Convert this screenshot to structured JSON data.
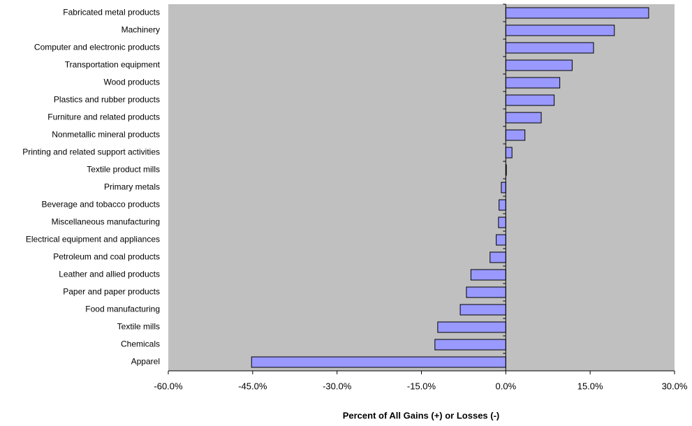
{
  "chart_data": {
    "type": "bar",
    "orientation": "horizontal",
    "x_label": "Percent of All Gains (+)  or Losses (-)",
    "categories": [
      "Fabricated metal products",
      "Machinery",
      "Computer and electronic products",
      "Transportation equipment",
      "Wood products",
      "Plastics and rubber products",
      "Furniture and related products",
      "Nonmetallic mineral products",
      "Printing and related support activities",
      "Textile product mills",
      "Primary metals",
      "Beverage and tobacco products",
      "Miscellaneous manufacturing",
      "Electrical equipment and appliances",
      "Petroleum and coal products",
      "Leather and allied products",
      "Paper and paper products",
      "Food manufacturing",
      "Textile mills",
      "Chemicals",
      "Apparel"
    ],
    "values": [
      25.4,
      19.3,
      15.6,
      11.8,
      9.6,
      8.6,
      6.3,
      3.4,
      1.1,
      0.1,
      -0.8,
      -1.2,
      -1.3,
      -1.7,
      -2.8,
      -6.2,
      -7.0,
      -8.1,
      -12.1,
      -12.6,
      -45.2
    ],
    "color": "#9999ff",
    "plot_background": "#c0c0c0",
    "xlim": [
      -60,
      30
    ],
    "xticks": [
      {
        "value": -60,
        "label": "-60.0%"
      },
      {
        "value": -45,
        "label": "-45.0%"
      },
      {
        "value": -30,
        "label": "-30.0%"
      },
      {
        "value": -15,
        "label": "-15.0%"
      },
      {
        "value": 0,
        "label": "0.0%"
      },
      {
        "value": 15,
        "label": "15.0%"
      },
      {
        "value": 30,
        "label": "30.0%"
      }
    ]
  }
}
